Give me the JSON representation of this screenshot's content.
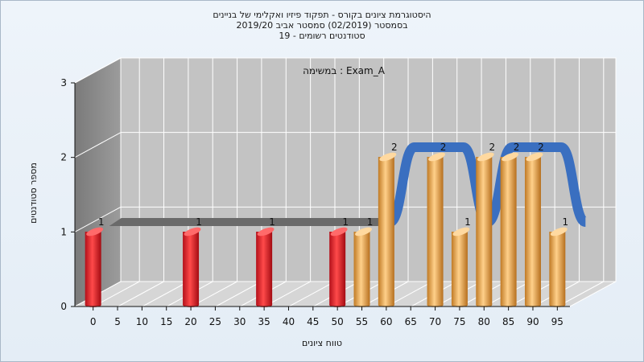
{
  "titles": [
    "היסטוגרמת ציונים בקורס - תפקוד פיזיו ואקלימי של בניינים",
    "בסמסטר  (02/2019)  סמסטר אביב 2019/20",
    "סטודנטים רשומים - 19"
  ],
  "chart_data": {
    "type": "bar",
    "title": "היסטוגרמת ציונים בקורס - תפקוד פיזיו ואקלימי של בניינים",
    "subtitle": "בסמסטר  (02/2019)  סמסטר אביב 2019/20",
    "subtitle2": "סטודנטים רשומים - 19",
    "annotation": "במשימה : Exam_A",
    "xlabel": "טווח ציונים",
    "ylabel": "מספר סטודנטים",
    "x_ticks": [
      "0",
      "5",
      "10",
      "15",
      "20",
      "25",
      "30",
      "35",
      "40",
      "45",
      "50",
      "55",
      "60",
      "65",
      "70",
      "75",
      "80",
      "85",
      "90",
      "95"
    ],
    "y_ticks": [
      "0",
      "1",
      "2",
      "3"
    ],
    "ylim": [
      0,
      3
    ],
    "grid": true,
    "bars": [
      {
        "x": 0,
        "value": 1,
        "label": "1",
        "color": "red"
      },
      {
        "x": 20,
        "value": 1,
        "label": "1",
        "color": "red"
      },
      {
        "x": 35,
        "value": 1,
        "label": "1",
        "color": "red"
      },
      {
        "x": 50,
        "value": 1,
        "label": "1",
        "color": "red"
      },
      {
        "x": 55,
        "value": 1,
        "label": "1",
        "color": "orange"
      },
      {
        "x": 60,
        "value": 2,
        "label": "2",
        "color": "orange"
      },
      {
        "x": 70,
        "value": 2,
        "label": "2",
        "color": "orange"
      },
      {
        "x": 75,
        "value": 1,
        "label": "1",
        "color": "orange"
      },
      {
        "x": 80,
        "value": 2,
        "label": "2",
        "color": "orange"
      },
      {
        "x": 85,
        "value": 2,
        "label": "2",
        "color": "orange"
      },
      {
        "x": 90,
        "value": 2,
        "label": "2",
        "color": "orange"
      },
      {
        "x": 95,
        "value": 1,
        "label": "1",
        "color": "orange"
      }
    ],
    "colors": {
      "red": "#e8232a",
      "orange": "#f0ac50",
      "ribbon_blue": "#3a6fc0",
      "ribbon_gray": "#6a6a6a",
      "wall": "#c2c2c2",
      "side_wall": "#8a8a8a"
    }
  }
}
